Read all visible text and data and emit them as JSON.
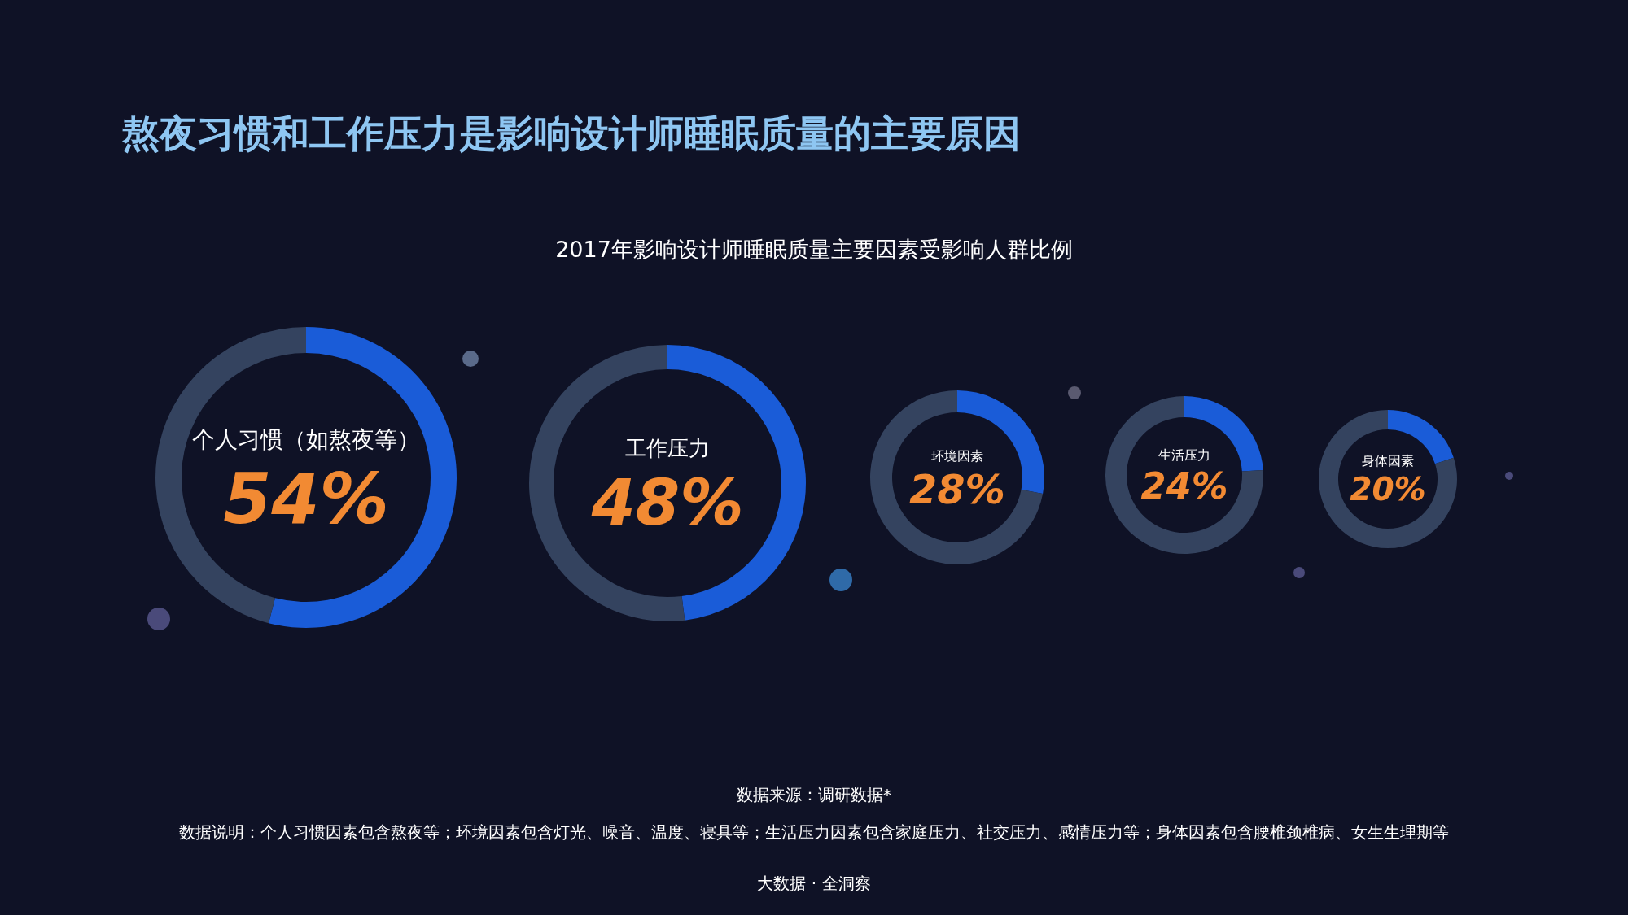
{
  "chart_data": [
    {
      "type": "donut",
      "title": "熬夜习惯和工作压力是影响设计师睡眠质量的主要原因",
      "subtitle": "2017年影响设计师睡眠质量主要因素受影响人群比例",
      "annotations": [
        "数据来源：调研数据*",
        "数据说明：个人习惯因素包含熬夜等；环境因素包含灯光、噪音、温度、寝具等；生活压力因素包含家庭压力、社交压力、感情压力等；身体因素包含腰椎颈椎病、女生生理期等",
        "大数据 · 全洞察"
      ],
      "categories": [
        "个人习惯（如熬夜等）",
        null
      ],
      "values": [
        54,
        46
      ],
      "colors": [
        "#1a5cd8",
        "#34435f"
      ],
      "value_labels": [
        "54%",
        null
      ]
    },
    {
      "type": "donut",
      "categories": [
        "工作压力",
        null
      ],
      "values": [
        48,
        52
      ],
      "colors": [
        "#1a5cd8",
        "#34435f"
      ],
      "value_labels": [
        "48%",
        null
      ]
    },
    {
      "type": "donut",
      "categories": [
        "环境因素",
        null
      ],
      "values": [
        28,
        72
      ],
      "colors": [
        "#1a5cd8",
        "#34435f"
      ],
      "value_labels": [
        "28%",
        null
      ]
    },
    {
      "type": "donut",
      "categories": [
        "生活压力",
        null
      ],
      "values": [
        24,
        76
      ],
      "colors": [
        "#1a5cd8",
        "#34435f"
      ],
      "value_labels": [
        "24%",
        null
      ]
    },
    {
      "type": "donut",
      "categories": [
        "身体因素",
        null
      ],
      "values": [
        20,
        80
      ],
      "colors": [
        "#1a5cd8",
        "#34435f"
      ],
      "value_labels": [
        "20%",
        null
      ]
    }
  ]
}
